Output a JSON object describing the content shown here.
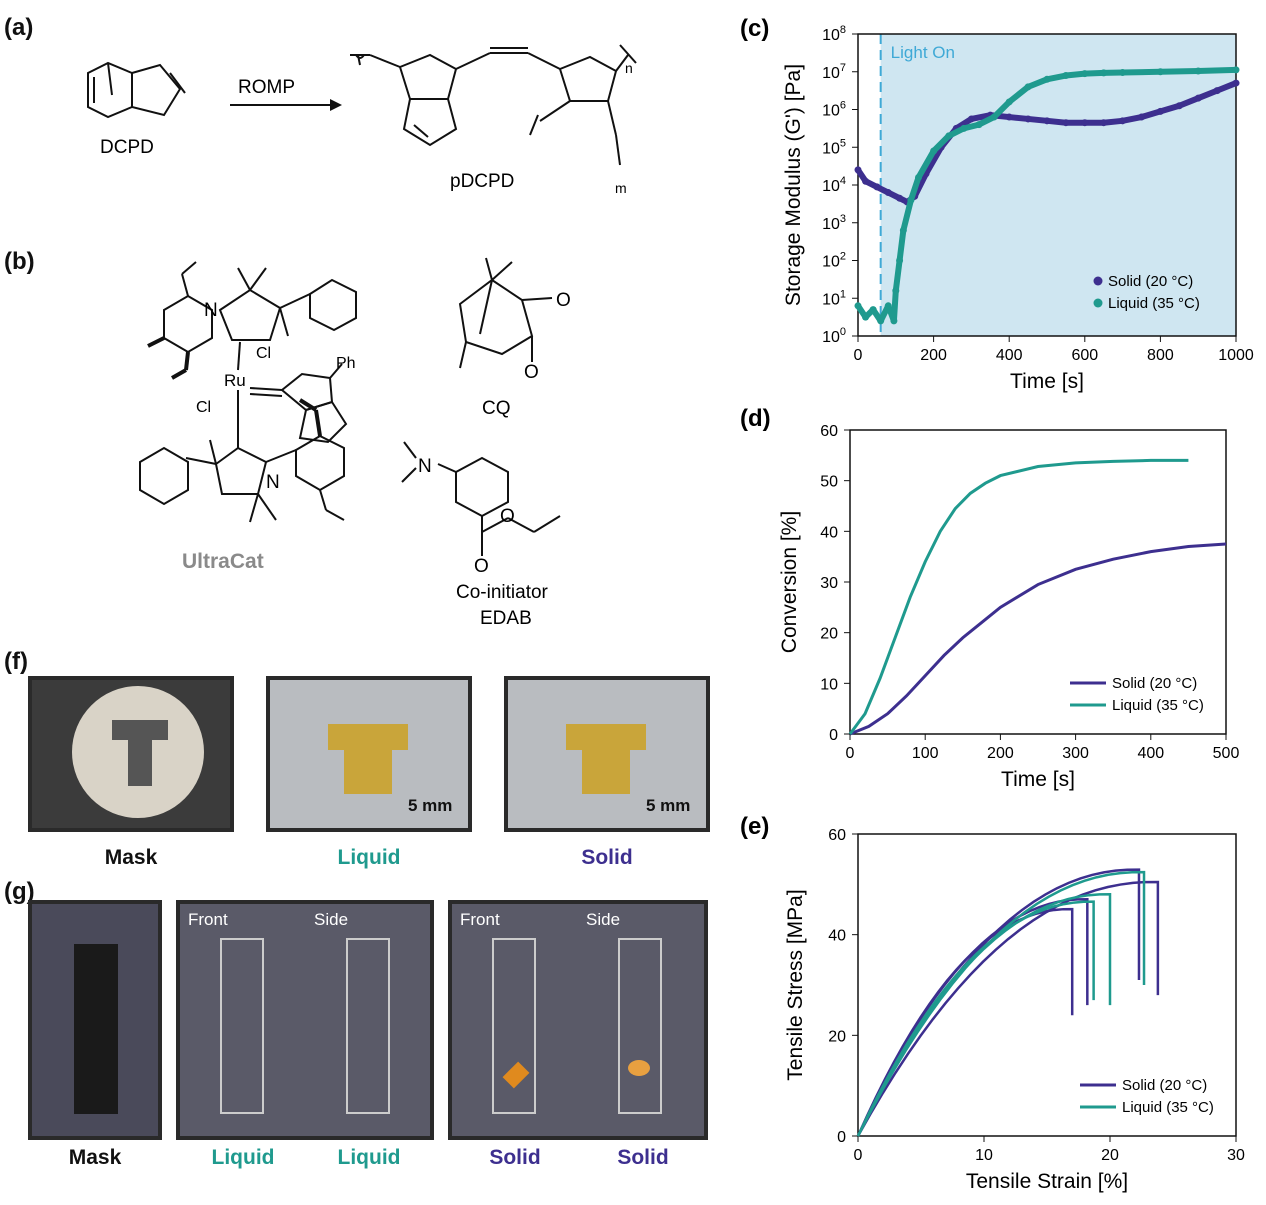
{
  "panels": {
    "a": {
      "label": "(a)",
      "monomer": "DCPD",
      "arrow_label": "ROMP",
      "polymer": "pDCPD",
      "subscript_n": "n",
      "subscript_m": "m"
    },
    "b": {
      "label": "(b)",
      "catalyst_name": "UltraCat",
      "cl1": "Cl",
      "cl2": "Cl",
      "ru": "Ru",
      "ph": "Ph",
      "n1": "N",
      "n2": "N",
      "o1": "O",
      "o2": "O",
      "o3": "O",
      "o4": "O",
      "n3": "N",
      "cq": "CQ",
      "coinit_line1": "Co-initiator",
      "coinit_line2": "EDAB"
    },
    "f": {
      "label": "(f)",
      "captions": [
        "Mask",
        "Liquid",
        "Solid"
      ],
      "scale": "5 mm"
    },
    "g": {
      "label": "(g)",
      "sub_front": "Front",
      "sub_side": "Side",
      "captions": [
        "Mask",
        "Liquid",
        "Liquid",
        "Solid",
        "Solid"
      ]
    }
  },
  "colors": {
    "solid": "#3d2f8f",
    "liquid": "#1f9a8e",
    "light_region": "#cfe6f1",
    "light_line": "#3fa9d6",
    "liquid_text": "#1f9a8e",
    "solid_text": "#3d2f8f"
  },
  "chart_data": [
    {
      "panel_label": "(c)",
      "type": "line",
      "xlabel": "Time [s]",
      "ylabel": "Storage Modulus (G') [Pa]",
      "xlim": [
        0,
        1000
      ],
      "ylim_log10": [
        0,
        8
      ],
      "yscale": "log",
      "x_ticks": [
        "0",
        "200",
        "400",
        "600",
        "800",
        "1000"
      ],
      "y_tick_exponents": [
        "0",
        "1",
        "2",
        "3",
        "4",
        "5",
        "6",
        "7",
        "8"
      ],
      "annotation": "Light On",
      "light_on_x": 60,
      "legend_position": "bottom-right",
      "series": [
        {
          "name": "Solid (20 °C)",
          "x": [
            0,
            20,
            50,
            80,
            110,
            130,
            150,
            180,
            220,
            260,
            300,
            350,
            400,
            450,
            500,
            550,
            600,
            650,
            700,
            750,
            800,
            850,
            900,
            950,
            1000
          ],
          "log10_y": [
            4.4,
            4.1,
            3.95,
            3.8,
            3.65,
            3.55,
            3.7,
            4.3,
            5.0,
            5.5,
            5.75,
            5.85,
            5.8,
            5.75,
            5.7,
            5.65,
            5.65,
            5.65,
            5.7,
            5.8,
            5.95,
            6.1,
            6.3,
            6.5,
            6.7
          ]
        },
        {
          "name": "Liquid (35 °C)",
          "x": [
            0,
            20,
            40,
            60,
            80,
            95,
            100,
            110,
            120,
            140,
            160,
            200,
            240,
            280,
            320,
            360,
            400,
            450,
            500,
            550,
            600,
            650,
            700,
            800,
            900,
            1000
          ],
          "log10_y": [
            0.8,
            0.5,
            0.7,
            0.4,
            0.8,
            0.4,
            1.2,
            2.0,
            2.8,
            3.6,
            4.2,
            4.9,
            5.3,
            5.5,
            5.6,
            5.8,
            6.2,
            6.6,
            6.8,
            6.9,
            6.95,
            6.97,
            6.98,
            7.0,
            7.02,
            7.05
          ]
        }
      ]
    },
    {
      "panel_label": "(d)",
      "type": "line",
      "xlabel": "Time [s]",
      "ylabel": "Conversion [%]",
      "xlim": [
        0,
        500
      ],
      "ylim": [
        0,
        60
      ],
      "x_ticks": [
        "0",
        "100",
        "200",
        "300",
        "400",
        "500"
      ],
      "y_ticks": [
        "0",
        "10",
        "20",
        "30",
        "40",
        "50",
        "60"
      ],
      "legend_position": "bottom-right",
      "series": [
        {
          "name": "Solid (20 °C)",
          "x": [
            0,
            25,
            50,
            75,
            100,
            125,
            150,
            175,
            200,
            250,
            300,
            350,
            400,
            450,
            500
          ],
          "y": [
            0,
            1.5,
            4,
            7.5,
            11.5,
            15.5,
            19,
            22,
            25,
            29.5,
            32.5,
            34.5,
            36,
            37,
            37.5
          ]
        },
        {
          "name": "Liquid (35 °C)",
          "x": [
            0,
            20,
            40,
            60,
            80,
            100,
            120,
            140,
            160,
            180,
            200,
            250,
            300,
            350,
            400,
            450
          ],
          "y": [
            0,
            4,
            11,
            19,
            27,
            34,
            40,
            44.5,
            47.5,
            49.5,
            51,
            52.8,
            53.5,
            53.8,
            54,
            54
          ]
        }
      ]
    },
    {
      "panel_label": "(e)",
      "type": "line",
      "xlabel": "Tensile Strain [%]",
      "ylabel": "Tensile Stress [MPa]",
      "xlim": [
        0,
        30
      ],
      "ylim": [
        0,
        60
      ],
      "x_ticks": [
        "0",
        "10",
        "20",
        "30"
      ],
      "y_ticks": [
        "0",
        "20",
        "40",
        "60"
      ],
      "legend_position": "bottom-right",
      "series": [
        {
          "name": "Solid (20 °C)",
          "group": "solid",
          "break_strain": 23.8,
          "max_stress": 51.5,
          "break_stress": 28
        },
        {
          "name": "",
          "group": "solid",
          "break_strain": 22.3,
          "max_stress": 54,
          "break_stress": 31
        },
        {
          "name": "",
          "group": "solid",
          "break_strain": 18.2,
          "max_stress": 48,
          "break_stress": 26
        },
        {
          "name": "",
          "group": "solid",
          "break_strain": 17.0,
          "max_stress": 46,
          "break_stress": 24
        },
        {
          "name": "Liquid (35 °C)",
          "group": "liquid",
          "break_strain": 22.7,
          "max_stress": 53.5,
          "break_stress": 30
        },
        {
          "name": "",
          "group": "liquid",
          "break_strain": 20.0,
          "max_stress": 49,
          "break_stress": 26
        },
        {
          "name": "",
          "group": "liquid",
          "break_strain": 18.7,
          "max_stress": 47.5,
          "break_stress": 27
        }
      ]
    }
  ]
}
